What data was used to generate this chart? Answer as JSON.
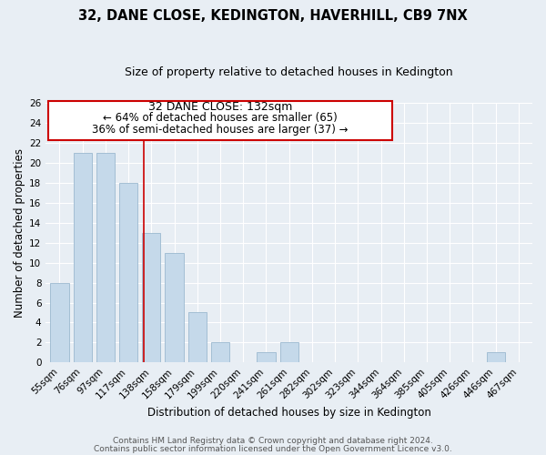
{
  "title": "32, DANE CLOSE, KEDINGTON, HAVERHILL, CB9 7NX",
  "subtitle": "Size of property relative to detached houses in Kedington",
  "xlabel": "Distribution of detached houses by size in Kedington",
  "ylabel": "Number of detached properties",
  "bar_color": "#c5d9ea",
  "bar_edge_color": "#9bb8d0",
  "highlight_line_color": "#cc0000",
  "categories": [
    "55sqm",
    "76sqm",
    "97sqm",
    "117sqm",
    "138sqm",
    "158sqm",
    "179sqm",
    "199sqm",
    "220sqm",
    "241sqm",
    "261sqm",
    "282sqm",
    "302sqm",
    "323sqm",
    "344sqm",
    "364sqm",
    "385sqm",
    "405sqm",
    "426sqm",
    "446sqm",
    "467sqm"
  ],
  "values": [
    8,
    21,
    21,
    18,
    13,
    11,
    5,
    2,
    0,
    1,
    2,
    0,
    0,
    0,
    0,
    0,
    0,
    0,
    0,
    1,
    0
  ],
  "highlight_index": 4,
  "highlight_label": "32 DANE CLOSE: 132sqm",
  "annotation_line1": "← 64% of detached houses are smaller (65)",
  "annotation_line2": "36% of semi-detached houses are larger (37) →",
  "ylim": [
    0,
    26
  ],
  "yticks": [
    0,
    2,
    4,
    6,
    8,
    10,
    12,
    14,
    16,
    18,
    20,
    22,
    24,
    26
  ],
  "footer1": "Contains HM Land Registry data © Crown copyright and database right 2024.",
  "footer2": "Contains public sector information licensed under the Open Government Licence v3.0.",
  "background_color": "#e8eef4",
  "grid_color": "#ffffff",
  "title_fontsize": 10.5,
  "subtitle_fontsize": 9,
  "annot_fontsize": 8.5,
  "tick_fontsize": 7.5,
  "axis_label_fontsize": 8.5,
  "footer_fontsize": 6.5
}
